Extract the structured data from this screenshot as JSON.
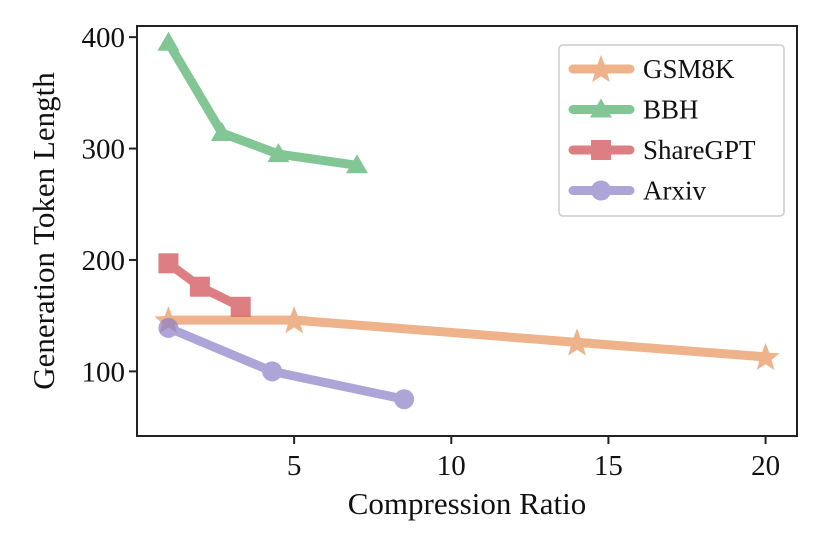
{
  "chart_data": {
    "type": "line",
    "title": "",
    "xlabel": "Compression Ratio",
    "ylabel": "Generation Token Length",
    "xlim": [
      0,
      21
    ],
    "ylim": [
      42,
      410
    ],
    "xticks": [
      5,
      10,
      15,
      20
    ],
    "yticks": [
      100,
      200,
      300,
      400
    ],
    "grid": false,
    "legend_position": "top-right",
    "series": [
      {
        "name": "GSM8K",
        "marker": "star",
        "color": "#E8935A",
        "x": [
          1,
          5,
          14,
          20
        ],
        "y": [
          146,
          146,
          126,
          113
        ]
      },
      {
        "name": "BBH",
        "marker": "triangle",
        "color": "#4FAE6A",
        "x": [
          1,
          2.7,
          4.5,
          7
        ],
        "y": [
          395,
          314,
          295,
          285
        ]
      },
      {
        "name": "ShareGPT",
        "marker": "square",
        "color": "#D0484F",
        "x": [
          1,
          2,
          3.3
        ],
        "y": [
          197,
          176,
          158
        ]
      },
      {
        "name": "Arxiv",
        "marker": "circle",
        "color": "#8B7FC7",
        "x": [
          1,
          4.3,
          8.5
        ],
        "y": [
          139,
          100,
          75
        ]
      }
    ]
  }
}
